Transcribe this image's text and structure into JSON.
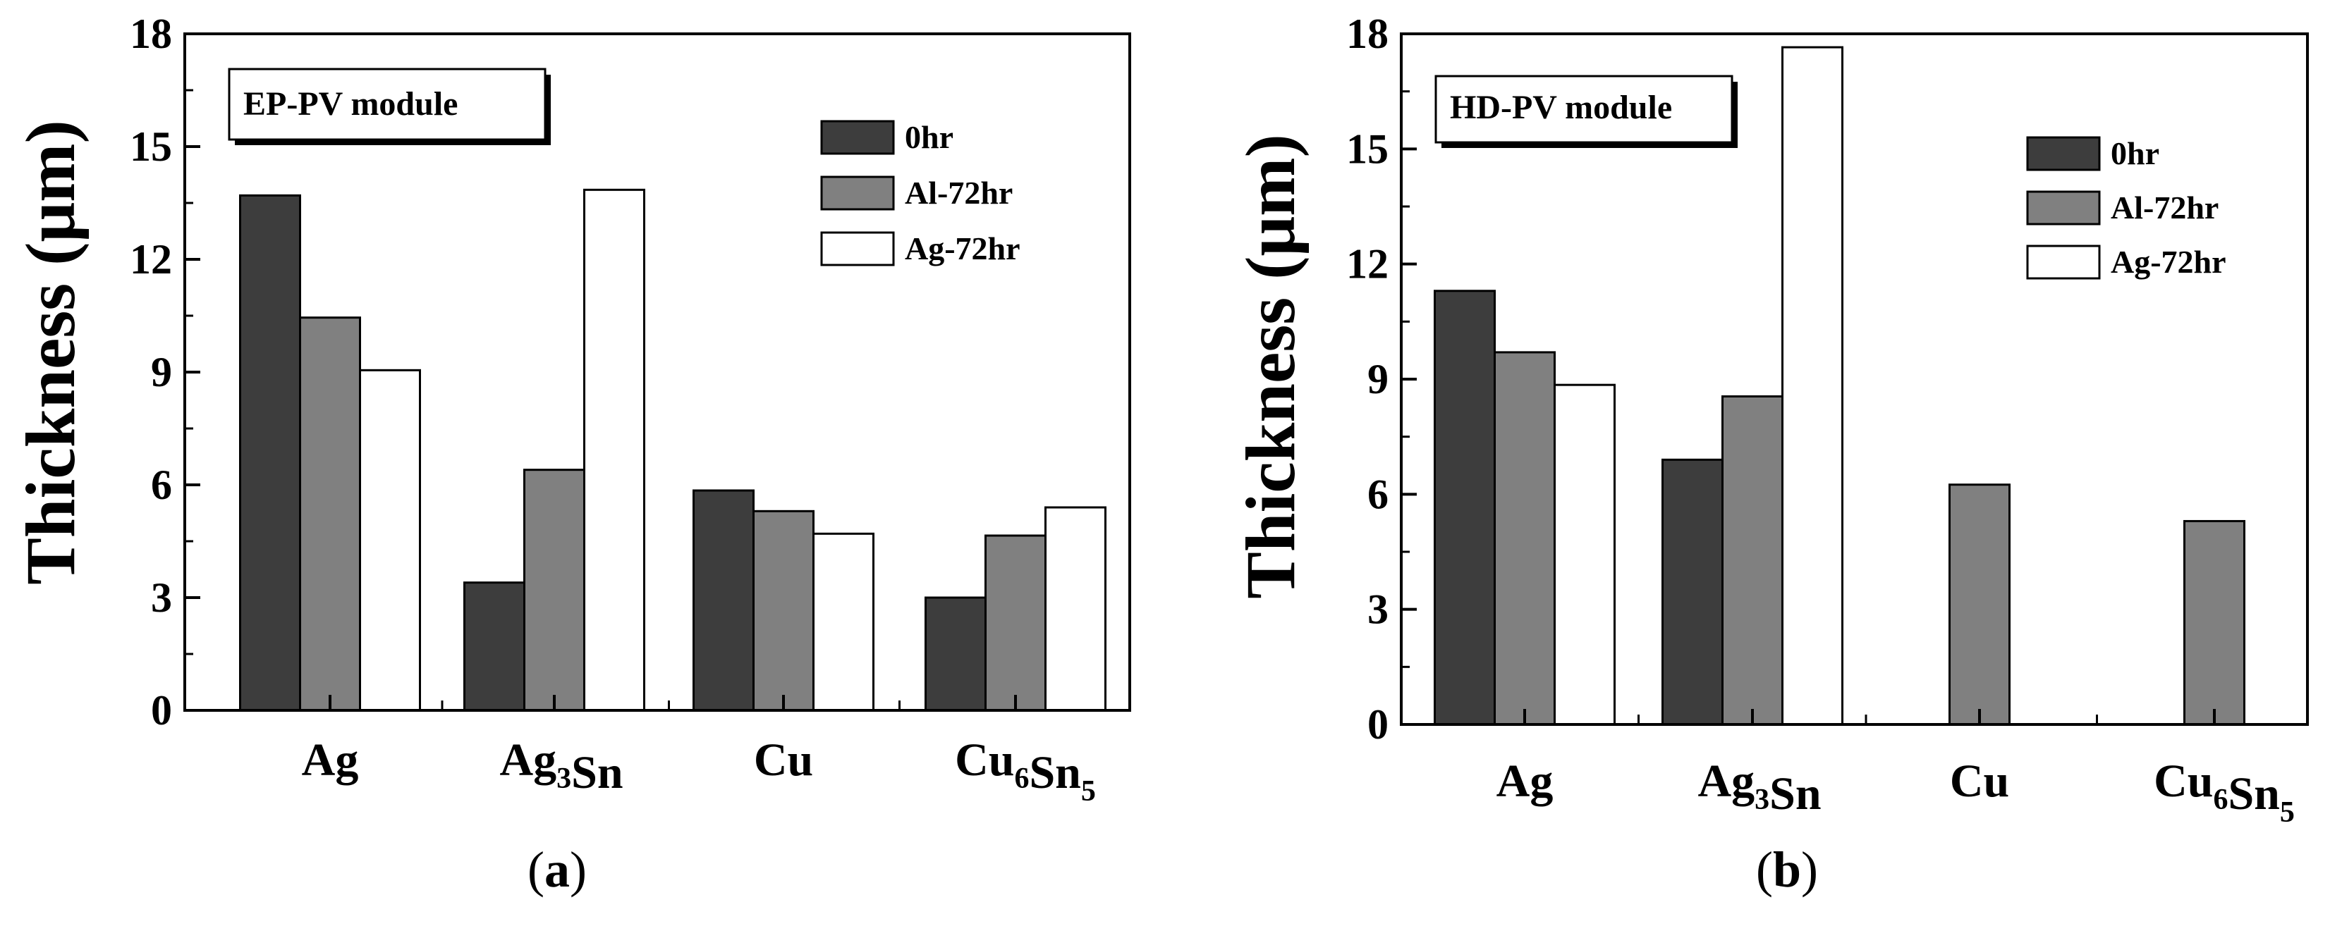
{
  "chart_data": [
    {
      "type": "bar",
      "panel_label": "a",
      "title": "EP-PV module",
      "ylabel": "Thickness (μm)",
      "xlabel": "",
      "ylim": [
        0,
        18
      ],
      "yticks": [
        "0",
        "3",
        "6",
        "9",
        "12",
        "15",
        "18"
      ],
      "categories": [
        {
          "base": "Ag",
          "parts": [
            [
              "Ag",
              ""
            ]
          ]
        },
        {
          "base": "Ag3Sn",
          "parts": [
            [
              "Ag",
              "3"
            ],
            [
              "Sn",
              ""
            ]
          ]
        },
        {
          "base": "Cu",
          "parts": [
            [
              "Cu",
              ""
            ]
          ]
        },
        {
          "base": "Cu6Sn5",
          "parts": [
            [
              "Cu",
              "6"
            ],
            [
              "Sn",
              "5"
            ]
          ]
        }
      ],
      "series": [
        {
          "name": "0hr",
          "color": "#3d3d3d",
          "values": [
            13.7,
            3.4,
            5.85,
            3.0
          ]
        },
        {
          "name": "Al-72hr",
          "color": "#808080",
          "values": [
            10.45,
            6.4,
            5.3,
            4.65
          ]
        },
        {
          "name": "Ag-72hr",
          "color": "#ffffff",
          "values": [
            9.05,
            13.85,
            4.7,
            5.4
          ]
        }
      ],
      "legend_position": "top-right",
      "grid": false
    },
    {
      "type": "bar",
      "panel_label": "b",
      "title": "HD-PV module",
      "ylabel": "Thickness (μm)",
      "xlabel": "",
      "ylim": [
        0,
        18
      ],
      "yticks": [
        "0",
        "3",
        "6",
        "9",
        "12",
        "15",
        "18"
      ],
      "categories": [
        {
          "base": "Ag",
          "parts": [
            [
              "Ag",
              ""
            ]
          ]
        },
        {
          "base": "Ag3Sn",
          "parts": [
            [
              "Ag",
              "3"
            ],
            [
              "Sn",
              ""
            ]
          ]
        },
        {
          "base": "Cu",
          "parts": [
            [
              "Cu",
              ""
            ]
          ]
        },
        {
          "base": "Cu6Sn5",
          "parts": [
            [
              "Cu",
              "6"
            ],
            [
              "Sn",
              "5"
            ]
          ]
        }
      ],
      "series": [
        {
          "name": "0hr",
          "color": "#3d3d3d",
          "values": [
            11.3,
            6.9,
            0,
            0
          ]
        },
        {
          "name": "Al-72hr",
          "color": "#808080",
          "values": [
            9.7,
            8.55,
            6.25,
            5.3
          ]
        },
        {
          "name": "Ag-72hr",
          "color": "#ffffff",
          "values": [
            8.85,
            17.65,
            0,
            0
          ]
        }
      ],
      "legend_position": "top-right",
      "grid": false
    }
  ]
}
